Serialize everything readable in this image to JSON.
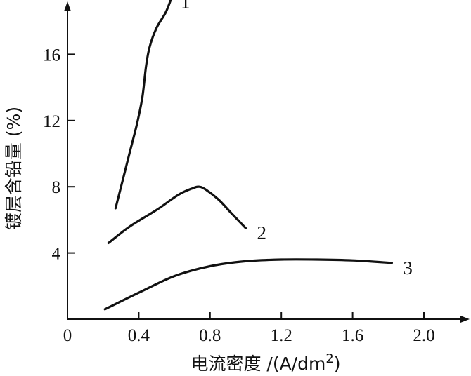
{
  "chart_data": {
    "type": "line",
    "title": "",
    "xlabel": "电流密度 /(A/dm",
    "xlabel_sup": "2",
    "xlabel_tail": ")",
    "ylabel": "镀层含铅量 (%)",
    "xlim": [
      0,
      2.0
    ],
    "ylim": [
      0,
      18.5
    ],
    "x_ticks": [
      0,
      0.4,
      0.8,
      1.2,
      1.6,
      2.0
    ],
    "x_tick_labels": [
      "0",
      "0.4",
      "0.8",
      "1.2",
      "1.6",
      "2.0"
    ],
    "y_ticks": [
      4,
      8,
      12,
      16
    ],
    "y_tick_labels": [
      "4",
      "8",
      "12",
      "16"
    ],
    "grid": false,
    "series": [
      {
        "name": "1",
        "x": [
          0.27,
          0.31,
          0.35,
          0.39,
          0.42,
          0.44,
          0.46,
          0.5,
          0.55,
          0.58
        ],
        "y": [
          6.7,
          8.4,
          10.1,
          11.8,
          13.4,
          15.2,
          16.4,
          17.6,
          18.5,
          19.3
        ]
      },
      {
        "name": "2",
        "x": [
          0.23,
          0.35,
          0.5,
          0.62,
          0.7,
          0.74,
          0.78,
          0.85,
          0.92,
          1.0
        ],
        "y": [
          4.6,
          5.6,
          6.6,
          7.5,
          7.9,
          8.0,
          7.8,
          7.2,
          6.4,
          5.5
        ]
      },
      {
        "name": "3",
        "x": [
          0.21,
          0.4,
          0.6,
          0.8,
          1.0,
          1.2,
          1.4,
          1.6,
          1.82
        ],
        "y": [
          0.6,
          1.6,
          2.6,
          3.2,
          3.5,
          3.6,
          3.6,
          3.55,
          3.4
        ]
      }
    ]
  }
}
